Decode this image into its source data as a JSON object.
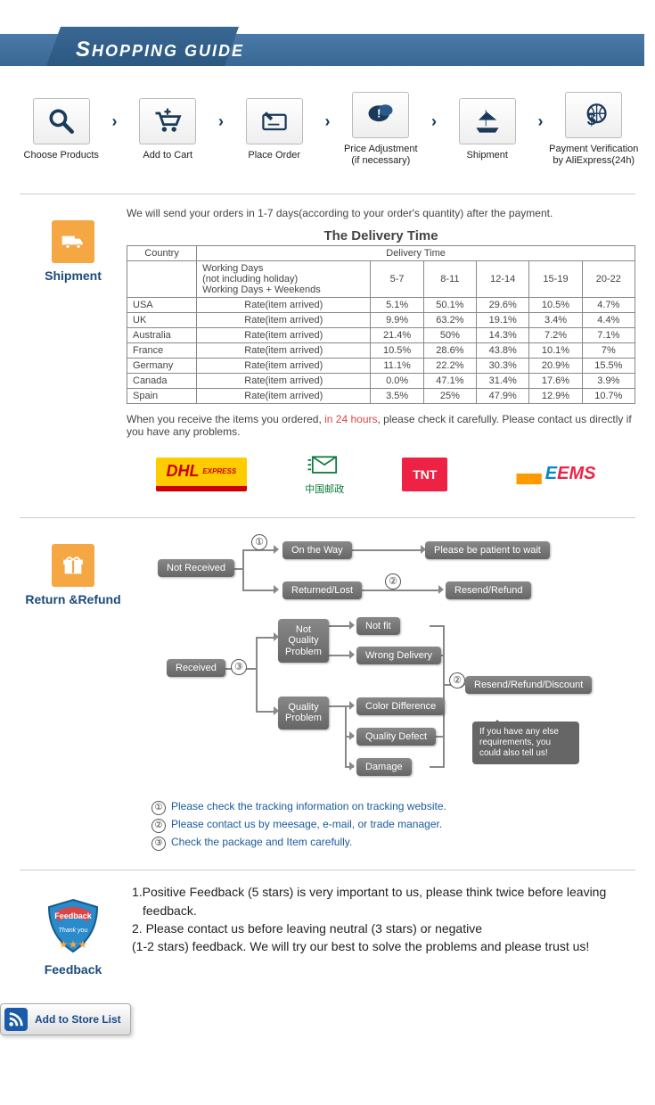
{
  "banner": {
    "title_cap": "S",
    "title_rest": "HOPPING GUIDE"
  },
  "steps": [
    {
      "label": "Choose Products"
    },
    {
      "label": "Add to Cart"
    },
    {
      "label": "Place Order"
    },
    {
      "label": "Price Adjustment\n(if necessary)"
    },
    {
      "label": "Shipment"
    },
    {
      "label": "Payment Verification\nby AliExpress(24h)"
    }
  ],
  "shipment": {
    "icon_label": "Shipment",
    "intro": "We will send your orders in 1-7 days(according to your order's quantity) after the payment.",
    "table_title": "The Delivery Time",
    "headers": {
      "country": "Country",
      "delivery_time": "Delivery Time",
      "working_days": "Working Days\n(not including holiday)\nWorking Days + Weekends",
      "rate_label": "Rate(item arrived)",
      "ranges": [
        "5-7",
        "8-11",
        "12-14",
        "15-19",
        "20-22"
      ]
    },
    "rows": [
      {
        "country": "USA",
        "rates": [
          "5.1%",
          "50.1%",
          "29.6%",
          "10.5%",
          "4.7%"
        ]
      },
      {
        "country": "UK",
        "rates": [
          "9.9%",
          "63.2%",
          "19.1%",
          "3.4%",
          "4.4%"
        ]
      },
      {
        "country": "Australia",
        "rates": [
          "21.4%",
          "50%",
          "14.3%",
          "7.2%",
          "7.1%"
        ]
      },
      {
        "country": "France",
        "rates": [
          "10.5%",
          "28.6%",
          "43.8%",
          "10.1%",
          "7%"
        ]
      },
      {
        "country": "Germany",
        "rates": [
          "11.1%",
          "22.2%",
          "30.3%",
          "20.9%",
          "15.5%"
        ]
      },
      {
        "country": "Canada",
        "rates": [
          "0.0%",
          "47.1%",
          "31.4%",
          "17.6%",
          "3.9%"
        ]
      },
      {
        "country": "Spain",
        "rates": [
          "3.5%",
          "25%",
          "47.9%",
          "12.9%",
          "10.7%"
        ]
      }
    ],
    "note_pre": "When you receive the items you ordered, ",
    "note_hl": "in 24 hours",
    "note_post": ", please check it carefully. Please contact us directly if you have any problems.",
    "carriers": {
      "dhl": "DHL",
      "dhl_sub": "EXPRESS",
      "cp": "中国邮政",
      "tnt": "TNT",
      "ems_e": "E",
      "ems_rest": "EMS"
    }
  },
  "return": {
    "icon_label": "Return &Refund",
    "nodes": {
      "not_received": "Not Received",
      "on_the_way": "On the Way",
      "patient": "Please be patient to wait",
      "returned_lost": "Returned/Lost",
      "resend_refund": "Resend/Refund",
      "received": "Received",
      "not_quality": "Not\nQuality\nProblem",
      "not_fit": "Not fit",
      "wrong_delivery": "Wrong Delivery",
      "quality": "Quality\nProblem",
      "color_diff": "Color Difference",
      "quality_defect": "Quality Defect",
      "damage": "Damage",
      "resend_refund_discount": "Resend/Refund/Discount",
      "speech": "If you have any else requirements, you could also tell us!"
    },
    "circles": {
      "c1": "①",
      "c2": "②",
      "c3": "③"
    },
    "legend": [
      {
        "n": "①",
        "text": "Please check the tracking information on tracking website."
      },
      {
        "n": "②",
        "text": "Please contact us by meesage, e-mail, or trade manager."
      },
      {
        "n": "③",
        "text": "Check the package and Item carefully."
      }
    ]
  },
  "feedback": {
    "icon_label": "Feedback",
    "badge_text": "Feedback",
    "badge_thanks": "Thank you",
    "lines": [
      "1.Positive Feedback (5 stars) is very important to us, please think twice before leaving feedback.",
      "2. Please contact us before leaving neutral (3 stars) or negative",
      "(1-2 stars) feedback. We will try our best to solve the problems and please trust us!"
    ]
  },
  "add_store": {
    "label": "Add to Store List"
  }
}
